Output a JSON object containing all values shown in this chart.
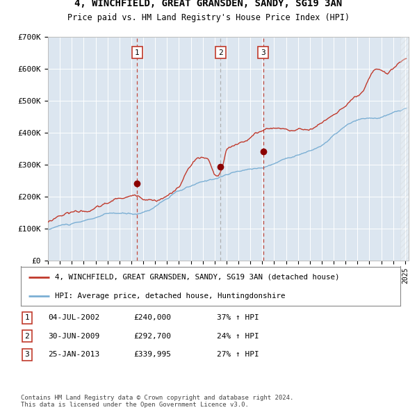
{
  "title": "4, WINCHFIELD, GREAT GRANSDEN, SANDY, SG19 3AN",
  "subtitle": "Price paid vs. HM Land Registry's House Price Index (HPI)",
  "background_color": "#dce6f0",
  "ylim": [
    0,
    700000
  ],
  "yticks": [
    0,
    100000,
    200000,
    300000,
    400000,
    500000,
    600000,
    700000
  ],
  "ytick_labels": [
    "£0",
    "£100K",
    "£200K",
    "£300K",
    "£400K",
    "£500K",
    "£600K",
    "£700K"
  ],
  "hpi_line_color": "#7bafd4",
  "price_line_color": "#c0392b",
  "sale_marker_color": "#8b0000",
  "sale1_year": 2002.5,
  "sale1_price": 240000,
  "sale2_year": 2009.5,
  "sale2_price": 292700,
  "sale3_year": 2013.08,
  "sale3_price": 339995,
  "vline_red_color": "#c0392b",
  "vline_gray_color": "#aaaaaa",
  "legend_label_red": "4, WINCHFIELD, GREAT GRANSDEN, SANDY, SG19 3AN (detached house)",
  "legend_label_blue": "HPI: Average price, detached house, Huntingdonshire",
  "table_rows": [
    {
      "num": "1",
      "date": "04-JUL-2002",
      "price": "£240,000",
      "change": "37% ↑ HPI"
    },
    {
      "num": "2",
      "date": "30-JUN-2009",
      "price": "£292,700",
      "change": "24% ↑ HPI"
    },
    {
      "num": "3",
      "date": "25-JAN-2013",
      "price": "£339,995",
      "change": "27% ↑ HPI"
    }
  ],
  "footer": "Contains HM Land Registry data © Crown copyright and database right 2024.\nThis data is licensed under the Open Government Licence v3.0."
}
